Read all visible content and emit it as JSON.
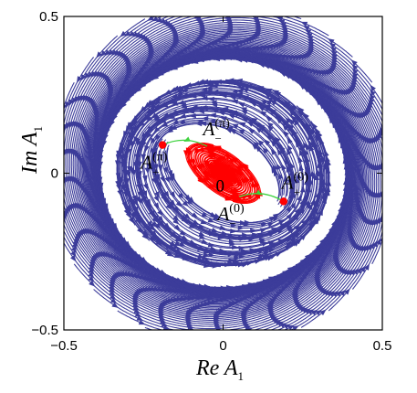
{
  "chart_data": {
    "type": "stream",
    "xlabel": "Re A",
    "xlabel_sub": "1",
    "ylabel": "Im A",
    "ylabel_sub": "1",
    "xlim": [
      -0.5,
      0.5
    ],
    "ylim": [
      -0.5,
      0.5
    ],
    "x_ticks": [
      -0.5,
      0,
      0.5
    ],
    "x_tick_labels": [
      "−0.5",
      "0",
      "0.5"
    ],
    "y_ticks": [
      -0.5,
      0,
      0.5
    ],
    "y_tick_labels": [
      "−0.5",
      "0",
      "0.5"
    ],
    "grid": false,
    "colors": {
      "background_streamlines": "#3c3c9a",
      "separatrices": "#ff0000",
      "connections": "#3fd23f",
      "fixed_points": "#ff0000"
    },
    "fixed_points": [
      {
        "id": "origin",
        "x": 0.0,
        "y": 0.0,
        "label": "0",
        "sup": ""
      },
      {
        "id": "A-plus-pi",
        "x": -0.19,
        "y": 0.09,
        "label": "A",
        "sub": "+",
        "sup": "(π)"
      },
      {
        "id": "A-minus-pi",
        "x": -0.04,
        "y": 0.08,
        "label": "A",
        "sub": "−",
        "sup": "(π)"
      },
      {
        "id": "A-minus-0",
        "x": 0.04,
        "y": -0.08,
        "label": "A",
        "sub": "−",
        "sup": "(0)"
      },
      {
        "id": "A-plus-0",
        "x": 0.19,
        "y": -0.09,
        "label": "A",
        "sub": "+",
        "sup": "(0)"
      }
    ],
    "connections": [
      {
        "from": "A-minus-pi",
        "to": "A-plus-pi"
      },
      {
        "from": "A-minus-0",
        "to": "A-plus-0"
      }
    ],
    "flow": {
      "rotation": "counterclockwise",
      "source_points": [
        "A-plus-pi",
        "A-plus-0"
      ],
      "sink_at_infinity": true
    }
  }
}
